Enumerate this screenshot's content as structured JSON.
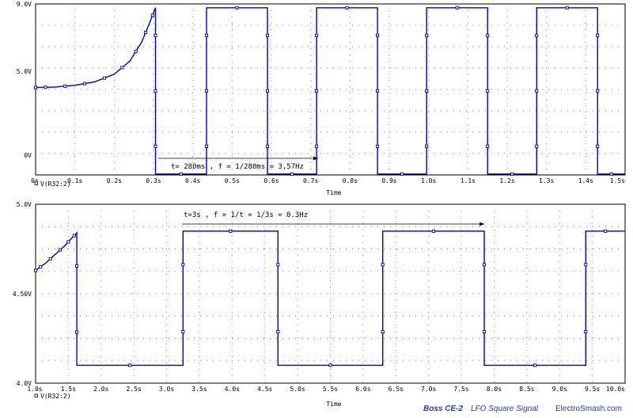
{
  "chart_data": [
    {
      "type": "line",
      "xlabel": "Time",
      "xlim": [
        0,
        1.5
      ],
      "ylim": [
        0,
        9.0
      ],
      "x_ticks": [
        "0s",
        "0.1s",
        "0.2s",
        "0.3s",
        "0.4s",
        "0.5s",
        "0.6s",
        "0.7s",
        "0.8s",
        "0.9s",
        "1.0s",
        "1.1s",
        "1.2s",
        "1.3s",
        "1.4s",
        "1.5s"
      ],
      "y_ticks": [
        "0V",
        "5.0V",
        "9.0V"
      ],
      "legend": "V(R32:2)",
      "annotation": "t= 280ms , f = 1/280ms = 3,57Hz",
      "series": [
        {
          "name": "V(R32:2)",
          "x": [
            0,
            0.05,
            0.1,
            0.15,
            0.2,
            0.24,
            0.27,
            0.29,
            0.305,
            0.305,
            0.435,
            0.435,
            0.59,
            0.59,
            0.715,
            0.715,
            0.87,
            0.87,
            0.995,
            0.995,
            1.15,
            1.15,
            1.275,
            1.275,
            1.43,
            1.43,
            1.5
          ],
          "y": [
            4.6,
            4.63,
            4.72,
            4.9,
            5.3,
            6.0,
            7.0,
            8.0,
            8.8,
            0.05,
            0.05,
            8.8,
            8.8,
            0.05,
            0.05,
            8.8,
            8.8,
            0.05,
            0.05,
            8.8,
            8.8,
            0.05,
            0.05,
            8.8,
            8.8,
            0.05,
            0.05
          ]
        }
      ]
    },
    {
      "type": "line",
      "xlabel": "Time",
      "xlim": [
        1.0,
        10.0
      ],
      "ylim": [
        4.0,
        5.0
      ],
      "x_ticks": [
        "1.0s",
        "1.5s",
        "2.0s",
        "2.5s",
        "3.0s",
        "3.5s",
        "4.0s",
        "4.5s",
        "5.0s",
        "5.5s",
        "6.0s",
        "6.5s",
        "7.0s",
        "7.5s",
        "8.0s",
        "8.5s",
        "9.0s",
        "9.5s",
        "10.0s"
      ],
      "y_ticks": [
        "4.0V",
        "4.50V",
        "5.0V"
      ],
      "legend": "V(R32:2)",
      "annotation": "t=3s ,  f = 1/t = 1/3s = 0.3Hz",
      "series": [
        {
          "name": "V(R32:2)",
          "x": [
            1.0,
            1.15,
            1.3,
            1.45,
            1.55,
            1.63,
            1.63,
            3.25,
            3.25,
            4.7,
            4.7,
            6.3,
            6.3,
            7.85,
            7.85,
            9.4,
            9.4,
            10.0
          ],
          "y": [
            4.63,
            4.67,
            4.72,
            4.77,
            4.81,
            4.84,
            4.1,
            4.1,
            4.85,
            4.85,
            4.1,
            4.1,
            4.85,
            4.85,
            4.1,
            4.1,
            4.85,
            4.85
          ]
        }
      ]
    }
  ],
  "footer": {
    "brand": "Boss CE-2",
    "caption": "LFO Square Signal",
    "site": "ElectroSmash.com"
  },
  "colors": {
    "trace": "#0000cc",
    "grid": "#7a7a7a",
    "frame": "#000000"
  }
}
